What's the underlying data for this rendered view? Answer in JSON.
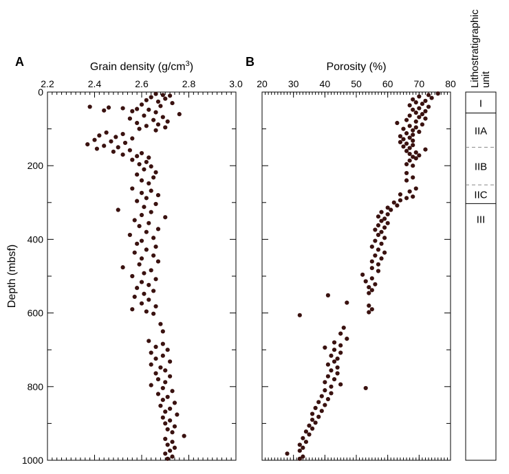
{
  "chart_data": [
    {
      "type": "scatter",
      "panel_label": "A",
      "title": "",
      "xlabel": "Grain density (g/cm",
      "xlabel_sup": "3",
      "xlabel_end": ")",
      "ylabel": "Depth (mbsf)",
      "xlim": [
        2.2,
        3.0
      ],
      "ylim": [
        0,
        1000
      ],
      "y_inverted": true,
      "x_ticks": [
        "2.2",
        "2.4",
        "2.6",
        "2.8",
        "3.0"
      ],
      "y_ticks": [
        "0",
        "200",
        "400",
        "600",
        "800",
        "1000"
      ],
      "grid": false,
      "color": "#3a1210",
      "points": [
        [
          2.66,
          5
        ],
        [
          2.69,
          8
        ],
        [
          2.72,
          10
        ],
        [
          2.64,
          14
        ],
        [
          2.7,
          18
        ],
        [
          2.62,
          22
        ],
        [
          2.67,
          26
        ],
        [
          2.73,
          30
        ],
        [
          2.6,
          34
        ],
        [
          2.68,
          38
        ],
        [
          2.38,
          40
        ],
        [
          2.46,
          42
        ],
        [
          2.52,
          44
        ],
        [
          2.58,
          46
        ],
        [
          2.63,
          48
        ],
        [
          2.44,
          50
        ],
        [
          2.56,
          52
        ],
        [
          2.66,
          55
        ],
        [
          2.76,
          60
        ],
        [
          2.61,
          64
        ],
        [
          2.69,
          68
        ],
        [
          2.55,
          72
        ],
        [
          2.65,
          76
        ],
        [
          2.71,
          80
        ],
        [
          2.58,
          84
        ],
        [
          2.67,
          88
        ],
        [
          2.62,
          92
        ],
        [
          2.7,
          96
        ],
        [
          2.59,
          100
        ],
        [
          2.66,
          104
        ],
        [
          2.45,
          110
        ],
        [
          2.52,
          114
        ],
        [
          2.42,
          118
        ],
        [
          2.49,
          122
        ],
        [
          2.56,
          126
        ],
        [
          2.4,
          130
        ],
        [
          2.47,
          134
        ],
        [
          2.53,
          138
        ],
        [
          2.37,
          142
        ],
        [
          2.44,
          146
        ],
        [
          2.5,
          150
        ],
        [
          2.41,
          154
        ],
        [
          2.55,
          158
        ],
        [
          2.48,
          162
        ],
        [
          2.6,
          166
        ],
        [
          2.52,
          170
        ],
        [
          2.58,
          174
        ],
        [
          2.63,
          178
        ],
        [
          2.56,
          184
        ],
        [
          2.62,
          190
        ],
        [
          2.59,
          196
        ],
        [
          2.64,
          202
        ],
        [
          2.61,
          210
        ],
        [
          2.66,
          218
        ],
        [
          2.58,
          224
        ],
        [
          2.65,
          232
        ],
        [
          2.6,
          240
        ],
        [
          2.63,
          248
        ],
        [
          2.56,
          262
        ],
        [
          2.64,
          268
        ],
        [
          2.6,
          274
        ],
        [
          2.67,
          280
        ],
        [
          2.62,
          288
        ],
        [
          2.58,
          296
        ],
        [
          2.66,
          304
        ],
        [
          2.61,
          312
        ],
        [
          2.5,
          320
        ],
        [
          2.64,
          326
        ],
        [
          2.6,
          334
        ],
        [
          2.7,
          340
        ],
        [
          2.57,
          348
        ],
        [
          2.63,
          356
        ],
        [
          2.59,
          364
        ],
        [
          2.67,
          372
        ],
        [
          2.62,
          380
        ],
        [
          2.55,
          388
        ],
        [
          2.65,
          396
        ],
        [
          2.6,
          404
        ],
        [
          2.58,
          412
        ],
        [
          2.66,
          420
        ],
        [
          2.62,
          428
        ],
        [
          2.57,
          436
        ],
        [
          2.65,
          444
        ],
        [
          2.6,
          452
        ],
        [
          2.67,
          460
        ],
        [
          2.59,
          468
        ],
        [
          2.52,
          476
        ],
        [
          2.64,
          484
        ],
        [
          2.61,
          492
        ],
        [
          2.56,
          500
        ],
        [
          2.66,
          508
        ],
        [
          2.6,
          516
        ],
        [
          2.63,
          524
        ],
        [
          2.58,
          532
        ],
        [
          2.65,
          540
        ],
        [
          2.61,
          548
        ],
        [
          2.57,
          556
        ],
        [
          2.63,
          564
        ],
        [
          2.6,
          574
        ],
        [
          2.66,
          582
        ],
        [
          2.56,
          590
        ],
        [
          2.62,
          596
        ],
        [
          2.65,
          602
        ],
        [
          2.68,
          630
        ],
        [
          2.69,
          650
        ],
        [
          2.63,
          676
        ],
        [
          2.69,
          684
        ],
        [
          2.66,
          692
        ],
        [
          2.71,
          700
        ],
        [
          2.64,
          708
        ],
        [
          2.69,
          716
        ],
        [
          2.66,
          724
        ],
        [
          2.72,
          732
        ],
        [
          2.64,
          740
        ],
        [
          2.68,
          748
        ],
        [
          2.7,
          756
        ],
        [
          2.66,
          764
        ],
        [
          2.72,
          772
        ],
        [
          2.67,
          780
        ],
        [
          2.7,
          788
        ],
        [
          2.64,
          796
        ],
        [
          2.69,
          804
        ],
        [
          2.73,
          812
        ],
        [
          2.67,
          820
        ],
        [
          2.71,
          828
        ],
        [
          2.69,
          836
        ],
        [
          2.74,
          844
        ],
        [
          2.68,
          852
        ],
        [
          2.72,
          860
        ],
        [
          2.7,
          868
        ],
        [
          2.75,
          876
        ],
        [
          2.69,
          884
        ],
        [
          2.72,
          892
        ],
        [
          2.7,
          900
        ],
        [
          2.74,
          908
        ],
        [
          2.71,
          916
        ],
        [
          2.73,
          924
        ],
        [
          2.78,
          934
        ],
        [
          2.7,
          942
        ],
        [
          2.73,
          950
        ],
        [
          2.71,
          958
        ],
        [
          2.74,
          966
        ],
        [
          2.72,
          974
        ],
        [
          2.7,
          982
        ],
        [
          2.73,
          990
        ],
        [
          2.71,
          996
        ]
      ]
    },
    {
      "type": "scatter",
      "panel_label": "B",
      "title": "",
      "xlabel": "Porosity (%)",
      "xlim": [
        20,
        80
      ],
      "ylim": [
        0,
        1000
      ],
      "y_inverted": true,
      "x_ticks": [
        "20",
        "30",
        "40",
        "50",
        "60",
        "70",
        "80"
      ],
      "grid": false,
      "color": "#3a1210",
      "points": [
        [
          76,
          4
        ],
        [
          73,
          8
        ],
        [
          70,
          12
        ],
        [
          74,
          16
        ],
        [
          68,
          20
        ],
        [
          72,
          24
        ],
        [
          69,
          28
        ],
        [
          71,
          32
        ],
        [
          67,
          36
        ],
        [
          73,
          40
        ],
        [
          70,
          44
        ],
        [
          68,
          48
        ],
        [
          72,
          52
        ],
        [
          69,
          56
        ],
        [
          71,
          60
        ],
        [
          67,
          64
        ],
        [
          70,
          68
        ],
        [
          72,
          72
        ],
        [
          66,
          76
        ],
        [
          69,
          80
        ],
        [
          63,
          84
        ],
        [
          71,
          88
        ],
        [
          67,
          92
        ],
        [
          69,
          96
        ],
        [
          65,
          100
        ],
        [
          68,
          104
        ],
        [
          70,
          108
        ],
        [
          66,
          112
        ],
        [
          68,
          116
        ],
        [
          64,
          120
        ],
        [
          67,
          124
        ],
        [
          65,
          128
        ],
        [
          68,
          132
        ],
        [
          64,
          136
        ],
        [
          66,
          140
        ],
        [
          68,
          144
        ],
        [
          65,
          148
        ],
        [
          67,
          152
        ],
        [
          72,
          156
        ],
        [
          66,
          160
        ],
        [
          69,
          164
        ],
        [
          67,
          168
        ],
        [
          70,
          172
        ],
        [
          68,
          176
        ],
        [
          69,
          180
        ],
        [
          67,
          186
        ],
        [
          66,
          196
        ],
        [
          68,
          200
        ],
        [
          66,
          220
        ],
        [
          68,
          232
        ],
        [
          66,
          240
        ],
        [
          69,
          262
        ],
        [
          67,
          270
        ],
        [
          64,
          278
        ],
        [
          68,
          284
        ],
        [
          66,
          288
        ],
        [
          64,
          294
        ],
        [
          62,
          300
        ],
        [
          63,
          308
        ],
        [
          60,
          314
        ],
        [
          61,
          320
        ],
        [
          58,
          326
        ],
        [
          60,
          332
        ],
        [
          57,
          338
        ],
        [
          59,
          344
        ],
        [
          58,
          350
        ],
        [
          60,
          356
        ],
        [
          57,
          362
        ],
        [
          59,
          368
        ],
        [
          56,
          374
        ],
        [
          58,
          380
        ],
        [
          57,
          388
        ],
        [
          59,
          396
        ],
        [
          56,
          404
        ],
        [
          58,
          412
        ],
        [
          55,
          420
        ],
        [
          57,
          428
        ],
        [
          59,
          436
        ],
        [
          56,
          444
        ],
        [
          58,
          452
        ],
        [
          55,
          460
        ],
        [
          57,
          468
        ],
        [
          55,
          478
        ],
        [
          57,
          486
        ],
        [
          52,
          496
        ],
        [
          55,
          506
        ],
        [
          53,
          514
        ],
        [
          56,
          522
        ],
        [
          54,
          530
        ],
        [
          55,
          538
        ],
        [
          54,
          546
        ],
        [
          41,
          552
        ],
        [
          47,
          572
        ],
        [
          54,
          580
        ],
        [
          55,
          590
        ],
        [
          54,
          598
        ],
        [
          32,
          606
        ],
        [
          46,
          640
        ],
        [
          45,
          656
        ],
        [
          47,
          670
        ],
        [
          43,
          680
        ],
        [
          45,
          688
        ],
        [
          40,
          694
        ],
        [
          43,
          700
        ],
        [
          45,
          708
        ],
        [
          42,
          716
        ],
        [
          44,
          724
        ],
        [
          43,
          732
        ],
        [
          41,
          740
        ],
        [
          44,
          748
        ],
        [
          42,
          756
        ],
        [
          44,
          764
        ],
        [
          41,
          772
        ],
        [
          43,
          780
        ],
        [
          40,
          788
        ],
        [
          45,
          794
        ],
        [
          42,
          800
        ],
        [
          53,
          804
        ],
        [
          40,
          810
        ],
        [
          42,
          818
        ],
        [
          39,
          826
        ],
        [
          41,
          834
        ],
        [
          38,
          842
        ],
        [
          40,
          850
        ],
        [
          37,
          858
        ],
        [
          39,
          866
        ],
        [
          36,
          874
        ],
        [
          38,
          882
        ],
        [
          36,
          890
        ],
        [
          37,
          898
        ],
        [
          35,
          906
        ],
        [
          36,
          914
        ],
        [
          34,
          922
        ],
        [
          35,
          930
        ],
        [
          33,
          940
        ],
        [
          34,
          950
        ],
        [
          32,
          958
        ],
        [
          33,
          966
        ],
        [
          32,
          974
        ],
        [
          28,
          982
        ],
        [
          33,
          990
        ],
        [
          32,
          996
        ]
      ]
    }
  ],
  "units_column": {
    "header": "Lithostratigraphic unit",
    "units": [
      {
        "label": "I",
        "top": 0,
        "bottom": 57,
        "boundary": "solid"
      },
      {
        "label": "IIA",
        "top": 57,
        "bottom": 150,
        "boundary": "dashed"
      },
      {
        "label": "IIB",
        "top": 150,
        "bottom": 252,
        "boundary": "dashed"
      },
      {
        "label": "IIC",
        "top": 252,
        "bottom": 303,
        "boundary": "solid"
      },
      {
        "label": "III",
        "top": 303,
        "bottom": 1000,
        "boundary": "none"
      }
    ]
  }
}
